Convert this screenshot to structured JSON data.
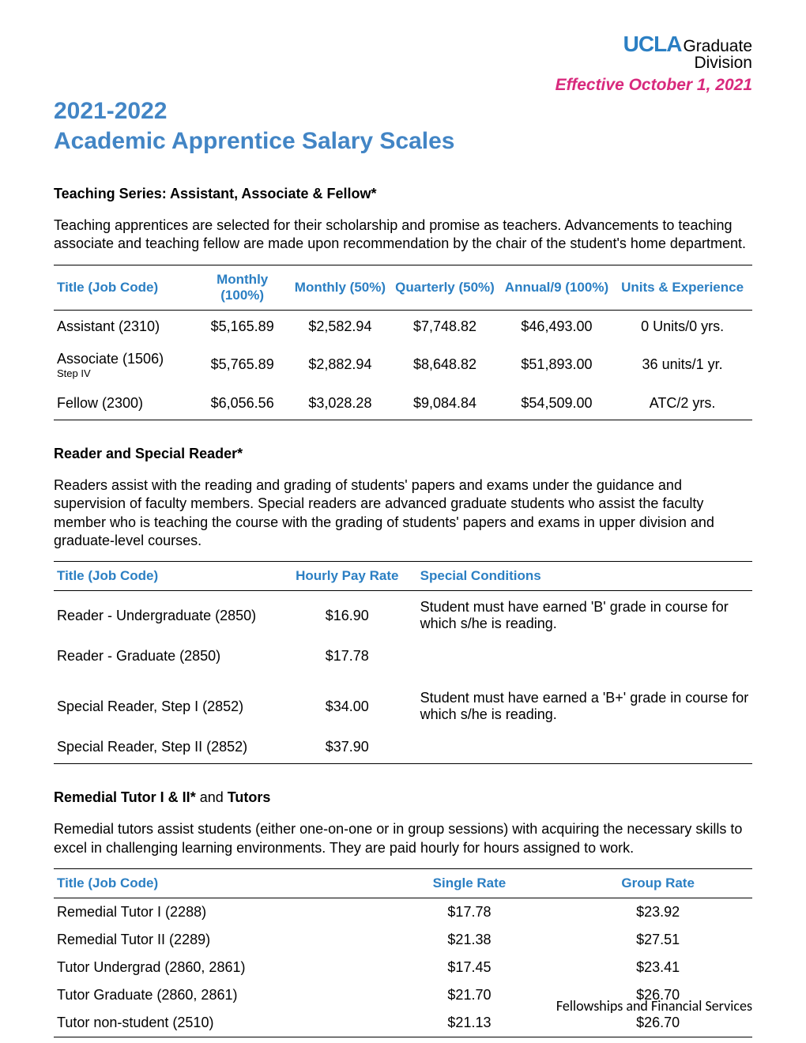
{
  "header": {
    "logo_ucla": "UCLA",
    "logo_graduate": "Graduate",
    "logo_division": "Division",
    "effective": "Effective October 1, 2021"
  },
  "title_line1": "2021-2022",
  "title_line2": "Academic Apprentice Salary Scales",
  "colors": {
    "heading_blue": "#4285c5",
    "link_blue": "#2b7fc3",
    "effective_magenta": "#d8297d",
    "text": "#000000",
    "background": "#ffffff",
    "border": "#000000"
  },
  "section1": {
    "heading": "Teaching Series:  Assistant, Associate & Fellow*",
    "description": "Teaching apprentices are selected for their scholarship and promise as teachers.  Advancements to teaching associate and teaching fellow are made upon recommendation by the chair of the student's home department.",
    "columns": [
      "Title (Job Code)",
      "Monthly (100%)",
      "Monthly (50%)",
      "Quarterly (50%)",
      "Annual/9 (100%)",
      "Units & Experience"
    ],
    "rows": [
      {
        "title": "Assistant (2310)",
        "sub": "",
        "monthly100": "$5,165.89",
        "monthly50": "$2,582.94",
        "quarterly50": "$7,748.82",
        "annual9": "$46,493.00",
        "units": "0 Units/0 yrs."
      },
      {
        "title": "Associate (1506)",
        "sub": "Step IV",
        "monthly100": "$5,765.89",
        "monthly50": "$2,882.94",
        "quarterly50": "$8,648.82",
        "annual9": "$51,893.00",
        "units": "36 units/1 yr."
      },
      {
        "title": "Fellow (2300)",
        "sub": "",
        "monthly100": "$6,056.56",
        "monthly50": "$3,028.28",
        "quarterly50": "$9,084.84",
        "annual9": "$54,509.00",
        "units": "ATC/2 yrs."
      }
    ]
  },
  "section2": {
    "heading": "Reader and Special Reader*",
    "description": "Readers assist with the reading and grading of students' papers and exams under the guidance and supervision of faculty members.  Special readers are advanced graduate students who assist the faculty member who is teaching the course with the grading of students' papers and exams in upper division and graduate-level courses.",
    "columns": [
      "Title (Job Code)",
      "Hourly Pay Rate",
      "Special Conditions"
    ],
    "rows": [
      {
        "title": "Reader - Undergraduate (2850)",
        "rate": "$16.90",
        "cond": "Student must have earned 'B' grade in course for which s/he is reading."
      },
      {
        "title": "Reader - Graduate (2850)",
        "rate": "$17.78",
        "cond": ""
      },
      {
        "title": "Special Reader, Step I (2852)",
        "rate": "$34.00",
        "cond": "Student must have earned a 'B+' grade in course for which s/he is reading."
      },
      {
        "title": "Special Reader, Step II (2852)",
        "rate": "$37.90",
        "cond": ""
      }
    ]
  },
  "section3": {
    "heading_bold1": "Remedial Tutor I & II*",
    "heading_plain": " and ",
    "heading_bold2": "Tutors",
    "description": "Remedial tutors assist students (either one-on-one or in group sessions) with acquiring the necessary skills to excel in challenging learning environments.  They are paid hourly for hours assigned to work.",
    "columns": [
      "Title (Job Code)",
      "Single Rate",
      "Group Rate"
    ],
    "rows": [
      {
        "title": "Remedial Tutor I (2288)",
        "single": "$17.78",
        "group": "$23.92"
      },
      {
        "title": "Remedial Tutor II (2289)",
        "single": "$21.38",
        "group": "$27.51"
      },
      {
        "title": "Tutor Undergrad (2860, 2861)",
        "single": "$17.45",
        "group": "$23.41"
      },
      {
        "title": "Tutor Graduate (2860, 2861)",
        "single": "$21.70",
        "group": "$26.70"
      },
      {
        "title": "Tutor non-student (2510)",
        "single": "$21.13",
        "group": "$26.70"
      }
    ]
  },
  "footer": "Fellowships and Financial Services"
}
